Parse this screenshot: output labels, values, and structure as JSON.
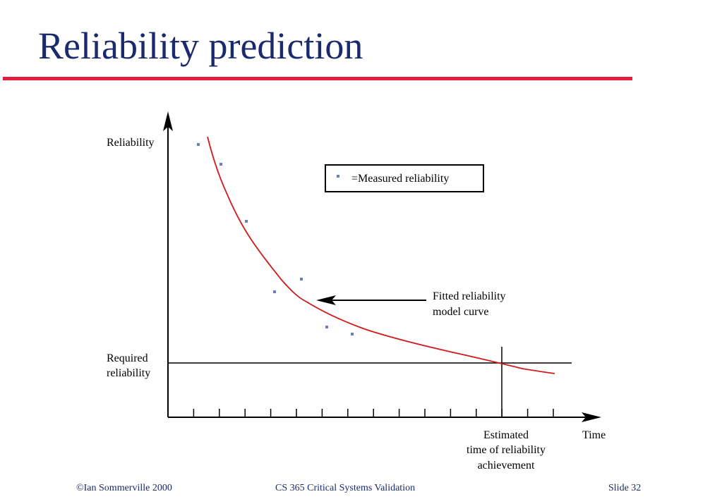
{
  "slide": {
    "title": "Reliability prediction",
    "accent_color": "#e31e3a",
    "title_color": "#1a2a6c"
  },
  "diagram": {
    "y_axis_label": "Reliability",
    "x_axis_label": "Time",
    "required_label_line1": "Required",
    "required_label_line2": "reliability",
    "legend_text": "=Measured reliability",
    "curve_label_line1": "Fitted reliability",
    "curve_label_line2": "model curve",
    "estimate_label_line1": "Estimated",
    "estimate_label_line2": "time of reliability",
    "estimate_label_line3": "achievement",
    "curve_color": "#d11a1a",
    "point_color": "#6b7fc0",
    "tick_count": 16
  },
  "footer": {
    "left": "©Ian Sommerville 2000",
    "center": "CS 365  Critical Systems Validation",
    "right": "Slide 32"
  }
}
